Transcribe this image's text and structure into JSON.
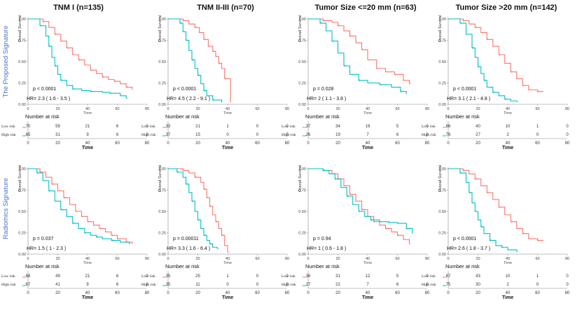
{
  "columns": [
    {
      "title": "TNM I (n=135)"
    },
    {
      "title": "TNM II-III (n=70)"
    },
    {
      "title": "Tumor Size <=20 mm (n=63)"
    },
    {
      "title": "Tumor Size >20 mm (n=142)"
    }
  ],
  "rows": [
    {
      "label": "The Proposed Signature"
    },
    {
      "label": "Radiomics Signature"
    }
  ],
  "colors": {
    "low": "#f8766d",
    "high": "#00bfc4"
  },
  "chart_data": [
    {
      "type": "line",
      "row": 0,
      "col": 0,
      "ylabel": "Overall Survival",
      "xlabel": "Time",
      "y_ticks": [
        "0.00",
        "0.25",
        "0.50",
        "0.75",
        "1.00"
      ],
      "x_ticks": [
        "0",
        "20",
        "40",
        "60",
        "80"
      ],
      "xlim": [
        0,
        80
      ],
      "ylim": [
        0,
        1
      ],
      "pvalue": "p < 0.0001",
      "hr": "HR= 2.3 ( 1.6 - 3.5 )",
      "series": [
        {
          "name": "Low risk",
          "x": [
            0,
            10,
            14,
            18,
            22,
            26,
            30,
            34,
            38,
            42,
            46,
            50,
            54,
            58,
            62,
            66,
            70
          ],
          "values": [
            1.0,
            0.97,
            0.9,
            0.82,
            0.74,
            0.66,
            0.58,
            0.52,
            0.46,
            0.4,
            0.36,
            0.32,
            0.29,
            0.27,
            0.24,
            0.2,
            0.17
          ]
        },
        {
          "name": "High risk",
          "x": [
            0,
            8,
            12,
            14,
            16,
            18,
            20,
            22,
            26,
            30,
            36,
            42,
            50,
            55,
            62,
            66
          ],
          "values": [
            1.0,
            0.92,
            0.8,
            0.68,
            0.55,
            0.45,
            0.35,
            0.28,
            0.22,
            0.18,
            0.16,
            0.15,
            0.14,
            0.13,
            0.1,
            0.07
          ]
        }
      ],
      "risk_table": {
        "title": "Number at risk",
        "time_label": "Time",
        "times": [
          "0",
          "20",
          "40",
          "60",
          "80"
        ],
        "low_label": "Low risk",
        "high_label": "High risk",
        "low": [
          "70",
          "59",
          "21",
          "6",
          "0"
        ],
        "high": [
          "65",
          "31",
          "9",
          "6",
          "0"
        ]
      }
    },
    {
      "type": "line",
      "row": 0,
      "col": 1,
      "ylabel": "Overall Survival",
      "xlabel": "Time",
      "y_ticks": [
        "0.00",
        "0.25",
        "0.50",
        "0.75",
        "1.00"
      ],
      "x_ticks": [
        "0",
        "20",
        "40",
        "60",
        "80"
      ],
      "xlim": [
        0,
        80
      ],
      "ylim": [
        0,
        1
      ],
      "pvalue": "p < 0.0001",
      "hr": "HR= 4.5 ( 2.2 - 9.1 )",
      "series": [
        {
          "name": "Low risk",
          "x": [
            0,
            10,
            14,
            18,
            21,
            24,
            27,
            30,
            32,
            34,
            36,
            38,
            42
          ],
          "values": [
            1.0,
            0.98,
            0.94,
            0.9,
            0.84,
            0.76,
            0.68,
            0.62,
            0.56,
            0.48,
            0.42,
            0.3,
            0.02
          ]
        },
        {
          "name": "High risk",
          "x": [
            0,
            8,
            10,
            12,
            14,
            16,
            18,
            20,
            22,
            24,
            26,
            30,
            36
          ],
          "values": [
            1.0,
            0.95,
            0.85,
            0.75,
            0.63,
            0.52,
            0.42,
            0.34,
            0.24,
            0.16,
            0.1,
            0.05,
            0.02
          ]
        }
      ],
      "risk_table": {
        "title": "Number at risk",
        "time_label": "Time",
        "times": [
          "0",
          "20",
          "40",
          "60",
          "80"
        ],
        "low_label": "Low risk",
        "high_label": "High risk",
        "low": [
          "33",
          "21",
          "1",
          "0",
          "0"
        ],
        "high": [
          "37",
          "15",
          "0",
          "0",
          "0"
        ]
      }
    },
    {
      "type": "line",
      "row": 0,
      "col": 2,
      "ylabel": "Overall Survival",
      "xlabel": "Time",
      "y_ticks": [
        "0.00",
        "0.25",
        "0.50",
        "0.75",
        "1.00"
      ],
      "x_ticks": [
        "0",
        "20",
        "40",
        "60",
        "80"
      ],
      "xlim": [
        0,
        80
      ],
      "ylim": [
        0,
        1
      ],
      "pvalue": "p = 0.028",
      "hr": "HR= 2 ( 1.1 - 3.8 )",
      "series": [
        {
          "name": "Low risk",
          "x": [
            0,
            10,
            16,
            20,
            24,
            28,
            32,
            36,
            40,
            46,
            52,
            58,
            64,
            68
          ],
          "values": [
            1.0,
            0.98,
            0.96,
            0.92,
            0.86,
            0.8,
            0.72,
            0.64,
            0.52,
            0.42,
            0.38,
            0.35,
            0.28,
            0.24
          ]
        },
        {
          "name": "High risk",
          "x": [
            0,
            8,
            12,
            16,
            20,
            24,
            28,
            34,
            40,
            48,
            56,
            62,
            66
          ],
          "values": [
            1.0,
            0.95,
            0.86,
            0.74,
            0.6,
            0.45,
            0.35,
            0.28,
            0.25,
            0.23,
            0.2,
            0.15,
            0.12
          ]
        }
      ],
      "risk_table": {
        "title": "Number at risk",
        "time_label": "Time",
        "times": [
          "0",
          "20",
          "40",
          "60",
          "80"
        ],
        "low_label": "Low risk",
        "high_label": "High risk",
        "low": [
          "37",
          "34",
          "19",
          "5",
          "0"
        ],
        "high": [
          "26",
          "19",
          "7",
          "6",
          "0"
        ]
      }
    },
    {
      "type": "line",
      "row": 0,
      "col": 3,
      "ylabel": "Overall Survival",
      "xlabel": "Time",
      "y_ticks": [
        "0.00",
        "0.25",
        "0.50",
        "0.75",
        "1.00"
      ],
      "x_ticks": [
        "0",
        "20",
        "40",
        "60",
        "80"
      ],
      "xlim": [
        0,
        80
      ],
      "ylim": [
        0,
        1
      ],
      "pvalue": "p < 0.0001",
      "hr": "HR= 3.1 ( 2.1 - 4.8 )",
      "series": [
        {
          "name": "Low risk",
          "x": [
            0,
            10,
            14,
            18,
            22,
            26,
            30,
            34,
            38,
            42,
            46,
            50,
            54,
            60,
            64
          ],
          "values": [
            1.0,
            0.98,
            0.94,
            0.9,
            0.84,
            0.76,
            0.68,
            0.58,
            0.48,
            0.38,
            0.3,
            0.22,
            0.17,
            0.15,
            0.15
          ]
        },
        {
          "name": "High risk",
          "x": [
            0,
            8,
            12,
            16,
            18,
            20,
            22,
            24,
            26,
            30,
            34,
            38,
            42,
            46
          ],
          "values": [
            1.0,
            0.95,
            0.82,
            0.66,
            0.55,
            0.44,
            0.36,
            0.28,
            0.2,
            0.14,
            0.1,
            0.06,
            0.04,
            0.03
          ]
        }
      ],
      "risk_table": {
        "title": "Number at risk",
        "time_label": "Time",
        "times": [
          "0",
          "20",
          "40",
          "60",
          "80"
        ],
        "low_label": "Low risk",
        "high_label": "High risk",
        "low": [
          "66",
          "40",
          "10",
          "1",
          "0"
        ],
        "high": [
          "76",
          "27",
          "2",
          "0",
          "0"
        ]
      }
    },
    {
      "type": "line",
      "row": 1,
      "col": 0,
      "ylabel": "Overall Survival",
      "xlabel": "Time",
      "y_ticks": [
        "0.00",
        "0.25",
        "0.50",
        "0.75",
        "1.00"
      ],
      "x_ticks": [
        "0",
        "20",
        "40",
        "60",
        "80"
      ],
      "xlim": [
        0,
        80
      ],
      "ylim": [
        0,
        1
      ],
      "pvalue": "p = 0.037",
      "hr": "HR= 1.5 ( 1 - 2.3 )",
      "series": [
        {
          "name": "Low risk",
          "x": [
            0,
            8,
            12,
            16,
            20,
            24,
            28,
            32,
            36,
            40,
            44,
            48,
            52,
            56,
            60,
            66,
            70
          ],
          "values": [
            1.0,
            0.96,
            0.9,
            0.82,
            0.74,
            0.66,
            0.58,
            0.5,
            0.44,
            0.38,
            0.34,
            0.3,
            0.26,
            0.22,
            0.18,
            0.14,
            0.12
          ]
        },
        {
          "name": "High risk",
          "x": [
            0,
            6,
            10,
            14,
            18,
            22,
            26,
            30,
            34,
            38,
            42,
            46,
            50,
            56,
            62,
            68
          ],
          "values": [
            1.0,
            0.95,
            0.86,
            0.74,
            0.62,
            0.52,
            0.44,
            0.36,
            0.3,
            0.25,
            0.22,
            0.2,
            0.18,
            0.16,
            0.14,
            0.12
          ]
        }
      ],
      "risk_table": {
        "title": "Number at risk",
        "time_label": "Time",
        "times": [
          "0",
          "20",
          "40",
          "60",
          "80"
        ],
        "low_label": "Low risk",
        "high_label": "High risk",
        "low": [
          "68",
          "49",
          "21",
          "6",
          "0"
        ],
        "high": [
          "67",
          "41",
          "9",
          "6",
          "0"
        ]
      }
    },
    {
      "type": "line",
      "row": 1,
      "col": 1,
      "ylabel": "Overall Survival",
      "xlabel": "Time",
      "y_ticks": [
        "0.00",
        "0.25",
        "0.50",
        "0.75",
        "1.00"
      ],
      "x_ticks": [
        "0",
        "20",
        "40",
        "60",
        "80"
      ],
      "xlim": [
        0,
        80
      ],
      "ylim": [
        0,
        1
      ],
      "pvalue": "p = 0.00011",
      "hr": "HR= 3.3 ( 1.6 - 6.4 )",
      "series": [
        {
          "name": "Low risk",
          "x": [
            0,
            10,
            14,
            18,
            22,
            24,
            26,
            28,
            30,
            32,
            34,
            36,
            38,
            40
          ],
          "values": [
            1.0,
            0.98,
            0.95,
            0.9,
            0.84,
            0.76,
            0.66,
            0.56,
            0.46,
            0.38,
            0.3,
            0.22,
            0.1,
            0.02
          ]
        },
        {
          "name": "High risk",
          "x": [
            0,
            6,
            10,
            12,
            14,
            16,
            18,
            20,
            22,
            24,
            26,
            28,
            30,
            33
          ],
          "values": [
            1.0,
            0.96,
            0.9,
            0.82,
            0.72,
            0.62,
            0.5,
            0.4,
            0.3,
            0.22,
            0.16,
            0.12,
            0.08,
            0.06
          ]
        }
      ],
      "risk_table": {
        "title": "Number at risk",
        "time_label": "Time",
        "times": [
          "0",
          "20",
          "40",
          "60",
          "80"
        ],
        "low_label": "Low risk",
        "high_label": "High risk",
        "low": [
          "35",
          "25",
          "1",
          "0",
          "0"
        ],
        "high": [
          "35",
          "11",
          "0",
          "0",
          "0"
        ]
      }
    },
    {
      "type": "line",
      "row": 1,
      "col": 2,
      "ylabel": "Overall Survival",
      "xlabel": "Time",
      "y_ticks": [
        "0.00",
        "0.25",
        "0.50",
        "0.75",
        "1.00"
      ],
      "x_ticks": [
        "0",
        "20",
        "40",
        "60",
        "80"
      ],
      "xlim": [
        0,
        80
      ],
      "ylim": [
        0,
        1
      ],
      "pvalue": "p = 0.94",
      "hr": "HR= 1 ( 0.6 - 1.8 )",
      "series": [
        {
          "name": "Low risk",
          "x": [
            0,
            10,
            16,
            20,
            24,
            28,
            32,
            36,
            40,
            44,
            48,
            52,
            56,
            60,
            64,
            68
          ],
          "values": [
            1.0,
            0.98,
            0.94,
            0.88,
            0.8,
            0.7,
            0.62,
            0.52,
            0.44,
            0.38,
            0.34,
            0.3,
            0.26,
            0.22,
            0.17,
            0.12
          ]
        },
        {
          "name": "High risk",
          "x": [
            0,
            10,
            14,
            18,
            22,
            26,
            30,
            34,
            38,
            42,
            48,
            54,
            60,
            66,
            70
          ],
          "values": [
            1.0,
            0.98,
            0.94,
            0.88,
            0.78,
            0.68,
            0.58,
            0.5,
            0.44,
            0.4,
            0.38,
            0.37,
            0.36,
            0.3,
            0.24
          ]
        }
      ],
      "risk_table": {
        "title": "Number at risk",
        "time_label": "Time",
        "times": [
          "0",
          "20",
          "40",
          "60",
          "80"
        ],
        "low_label": "Low risk",
        "high_label": "High risk",
        "low": [
          "36",
          "31",
          "12",
          "5",
          "0"
        ],
        "high": [
          "27",
          "22",
          "7",
          "6",
          "0"
        ]
      }
    },
    {
      "type": "line",
      "row": 1,
      "col": 3,
      "ylabel": "Overall Survival",
      "xlabel": "Time",
      "y_ticks": [
        "0.00",
        "0.25",
        "0.50",
        "0.75",
        "1.00"
      ],
      "x_ticks": [
        "0",
        "20",
        "40",
        "60",
        "80"
      ],
      "xlim": [
        0,
        80
      ],
      "ylim": [
        0,
        1
      ],
      "pvalue": "p < 0.0001",
      "hr": "HR= 2.6 ( 1.8 - 3.7 )",
      "series": [
        {
          "name": "Low risk",
          "x": [
            0,
            10,
            14,
            18,
            22,
            26,
            30,
            34,
            38,
            42,
            46,
            50,
            54,
            60,
            64
          ],
          "values": [
            1.0,
            0.98,
            0.94,
            0.88,
            0.8,
            0.72,
            0.64,
            0.55,
            0.46,
            0.38,
            0.3,
            0.24,
            0.18,
            0.16,
            0.16
          ]
        },
        {
          "name": "High risk",
          "x": [
            0,
            8,
            12,
            14,
            16,
            18,
            20,
            22,
            24,
            28,
            32,
            36,
            40,
            46
          ],
          "values": [
            1.0,
            0.95,
            0.84,
            0.72,
            0.6,
            0.5,
            0.4,
            0.32,
            0.24,
            0.16,
            0.1,
            0.08,
            0.05,
            0.03
          ]
        }
      ],
      "risk_table": {
        "title": "Number at risk",
        "time_label": "Time",
        "times": [
          "0",
          "20",
          "40",
          "60",
          "80"
        ],
        "low_label": "Low risk",
        "high_label": "High risk",
        "low": [
          "67",
          "43",
          "10",
          "1",
          "0"
        ],
        "high": [
          "75",
          "30",
          "2",
          "0",
          "0"
        ]
      }
    }
  ]
}
